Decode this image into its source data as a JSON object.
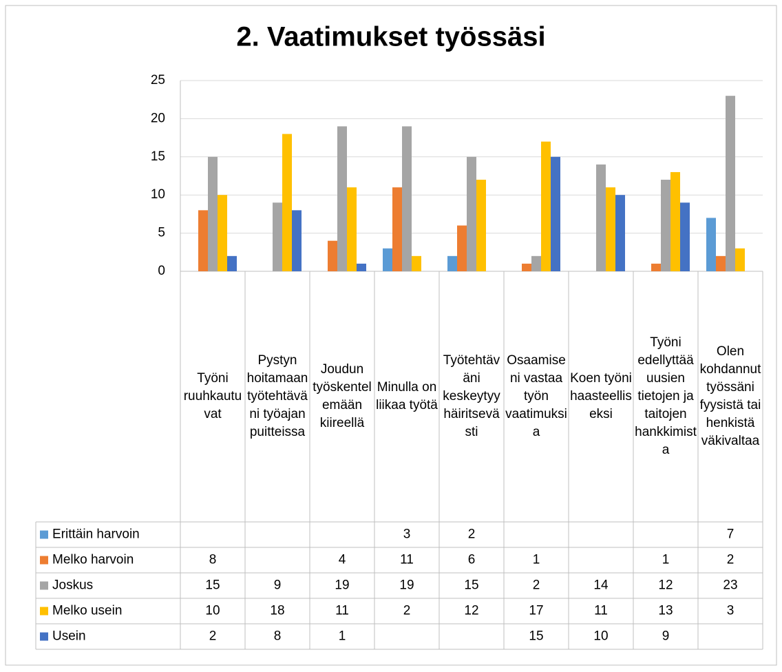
{
  "chart_data": {
    "type": "bar",
    "title": "2. Vaatimukset työssäsi",
    "categories": [
      "Työni ruuhkautuvat",
      "Pystyn hoitamaan työtehtäväni työajan puitteissa",
      "Joudun työskentelemään kiireellä",
      "Minulla on liikaa työtä",
      "Työtehtäväni keskeytyy häiritsevästi",
      "Osaamiseni vastaa työn vaatimuksia",
      "Koen työni haasteelliseksi",
      "Työni edellyttää uusien tietojen ja taitojen hankkimista",
      "Olen kohdannut työssäni fyysistä tai henkistä väkivaltaa"
    ],
    "series": [
      {
        "name": "Erittäin harvoin",
        "color": "#5b9bd5",
        "values": [
          null,
          null,
          null,
          3,
          2,
          null,
          null,
          null,
          7
        ]
      },
      {
        "name": "Melko harvoin",
        "color": "#ed7d31",
        "values": [
          8,
          null,
          4,
          11,
          6,
          1,
          null,
          1,
          2
        ]
      },
      {
        "name": "Joskus",
        "color": "#a5a5a5",
        "values": [
          15,
          9,
          19,
          19,
          15,
          2,
          14,
          12,
          23
        ]
      },
      {
        "name": "Melko usein",
        "color": "#ffc000",
        "values": [
          10,
          18,
          11,
          2,
          12,
          17,
          11,
          13,
          3
        ]
      },
      {
        "name": "Usein",
        "color": "#4472c4",
        "values": [
          2,
          8,
          1,
          null,
          null,
          15,
          10,
          9,
          null
        ]
      }
    ],
    "ylim": [
      0,
      25
    ],
    "yticks": [
      0,
      5,
      10,
      15,
      20,
      25
    ],
    "grid": true
  }
}
